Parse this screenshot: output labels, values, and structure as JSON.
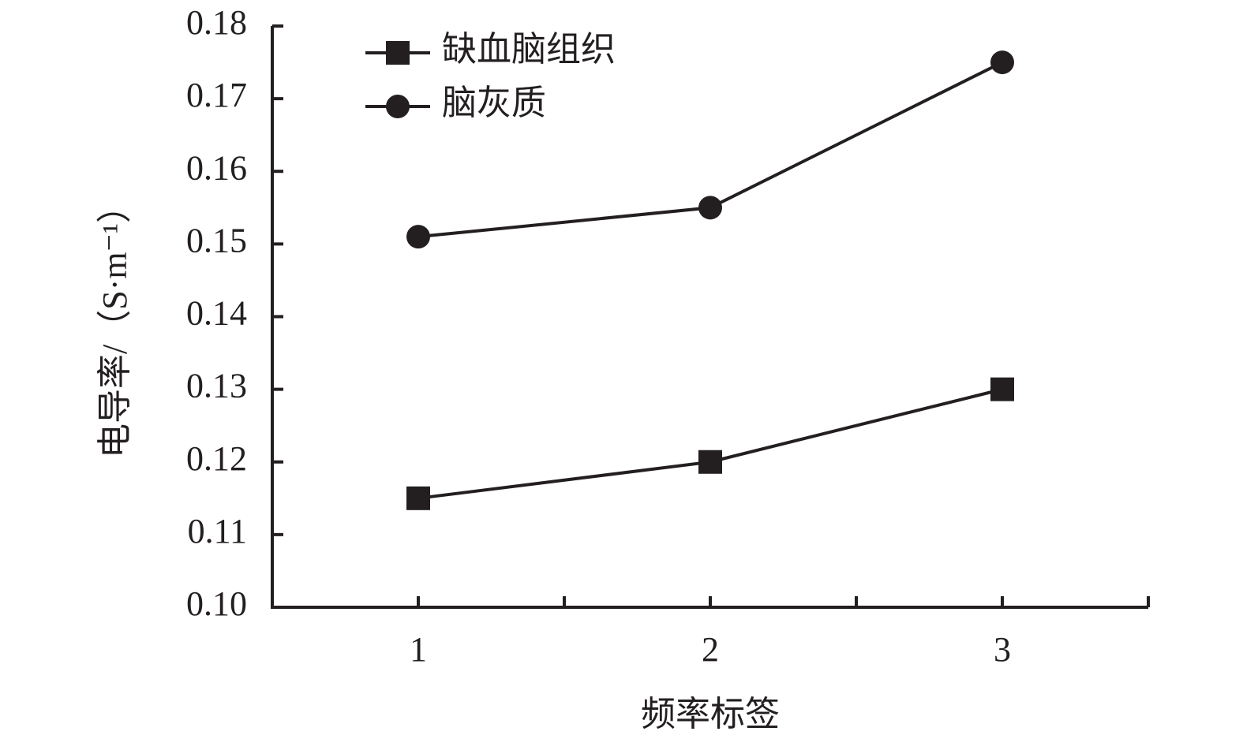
{
  "chart_data": {
    "type": "line",
    "x_label": "频率标签",
    "y_label": "电导率/（S·m⁻¹）",
    "x": [
      1,
      2,
      3
    ],
    "xlim": [
      0.5,
      3.5
    ],
    "xticks": [
      1,
      2,
      3
    ],
    "xminorticks": [
      1.5,
      2.5,
      3.5
    ],
    "ylim": [
      0.1,
      0.18
    ],
    "yticks": [
      {
        "value": 0.1,
        "label": "0.10"
      },
      0.11,
      0.12,
      0.13,
      0.14,
      0.15,
      0.16,
      0.17,
      0.18
    ],
    "legend": "upper left",
    "series": [
      {
        "name": "缺血脑组织",
        "color": "#231f20",
        "marker": "square",
        "values": [
          0.115,
          0.12,
          0.13
        ]
      },
      {
        "name": "脑灰质",
        "color": "#231f20",
        "marker": "circle",
        "values": [
          0.151,
          0.155,
          0.175
        ]
      }
    ]
  }
}
